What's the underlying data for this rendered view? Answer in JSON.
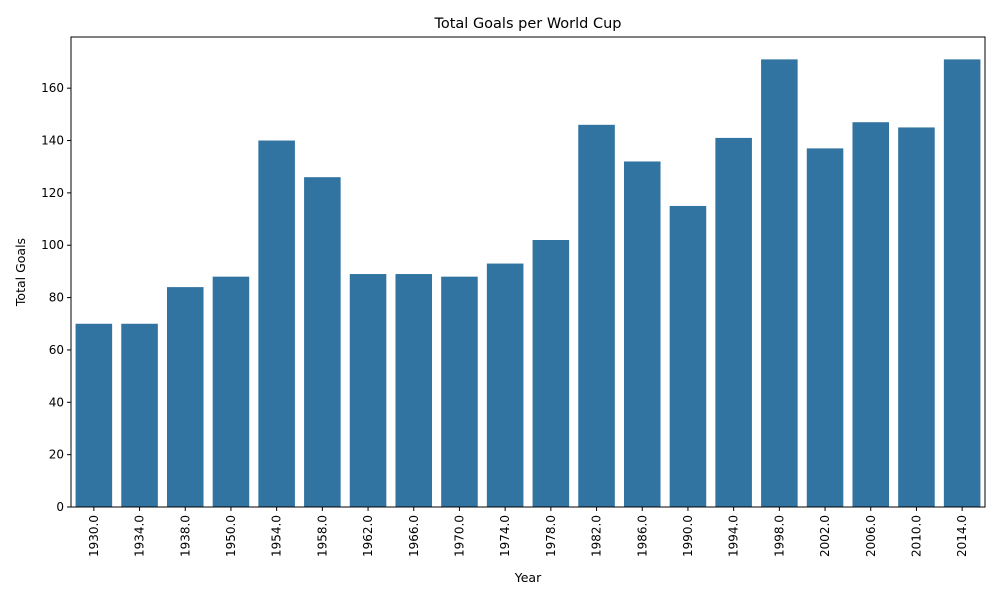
{
  "chart_data": {
    "type": "bar",
    "title": "Total Goals per World Cup",
    "xlabel": "Year",
    "ylabel": "Total Goals",
    "categories": [
      "1930.0",
      "1934.0",
      "1938.0",
      "1950.0",
      "1954.0",
      "1958.0",
      "1962.0",
      "1966.0",
      "1970.0",
      "1974.0",
      "1978.0",
      "1982.0",
      "1986.0",
      "1990.0",
      "1994.0",
      "1998.0",
      "2002.0",
      "2006.0",
      "2010.0",
      "2014.0"
    ],
    "values": [
      70,
      70,
      84,
      88,
      140,
      126,
      89,
      89,
      88,
      93,
      102,
      146,
      132,
      115,
      141,
      171,
      137,
      147,
      145,
      171
    ],
    "ylim": [
      0,
      179.55
    ],
    "yticks": [
      0,
      20,
      40,
      60,
      80,
      100,
      120,
      140,
      160
    ],
    "bar_color": "#3274a1",
    "grid": false,
    "legend": "none"
  }
}
